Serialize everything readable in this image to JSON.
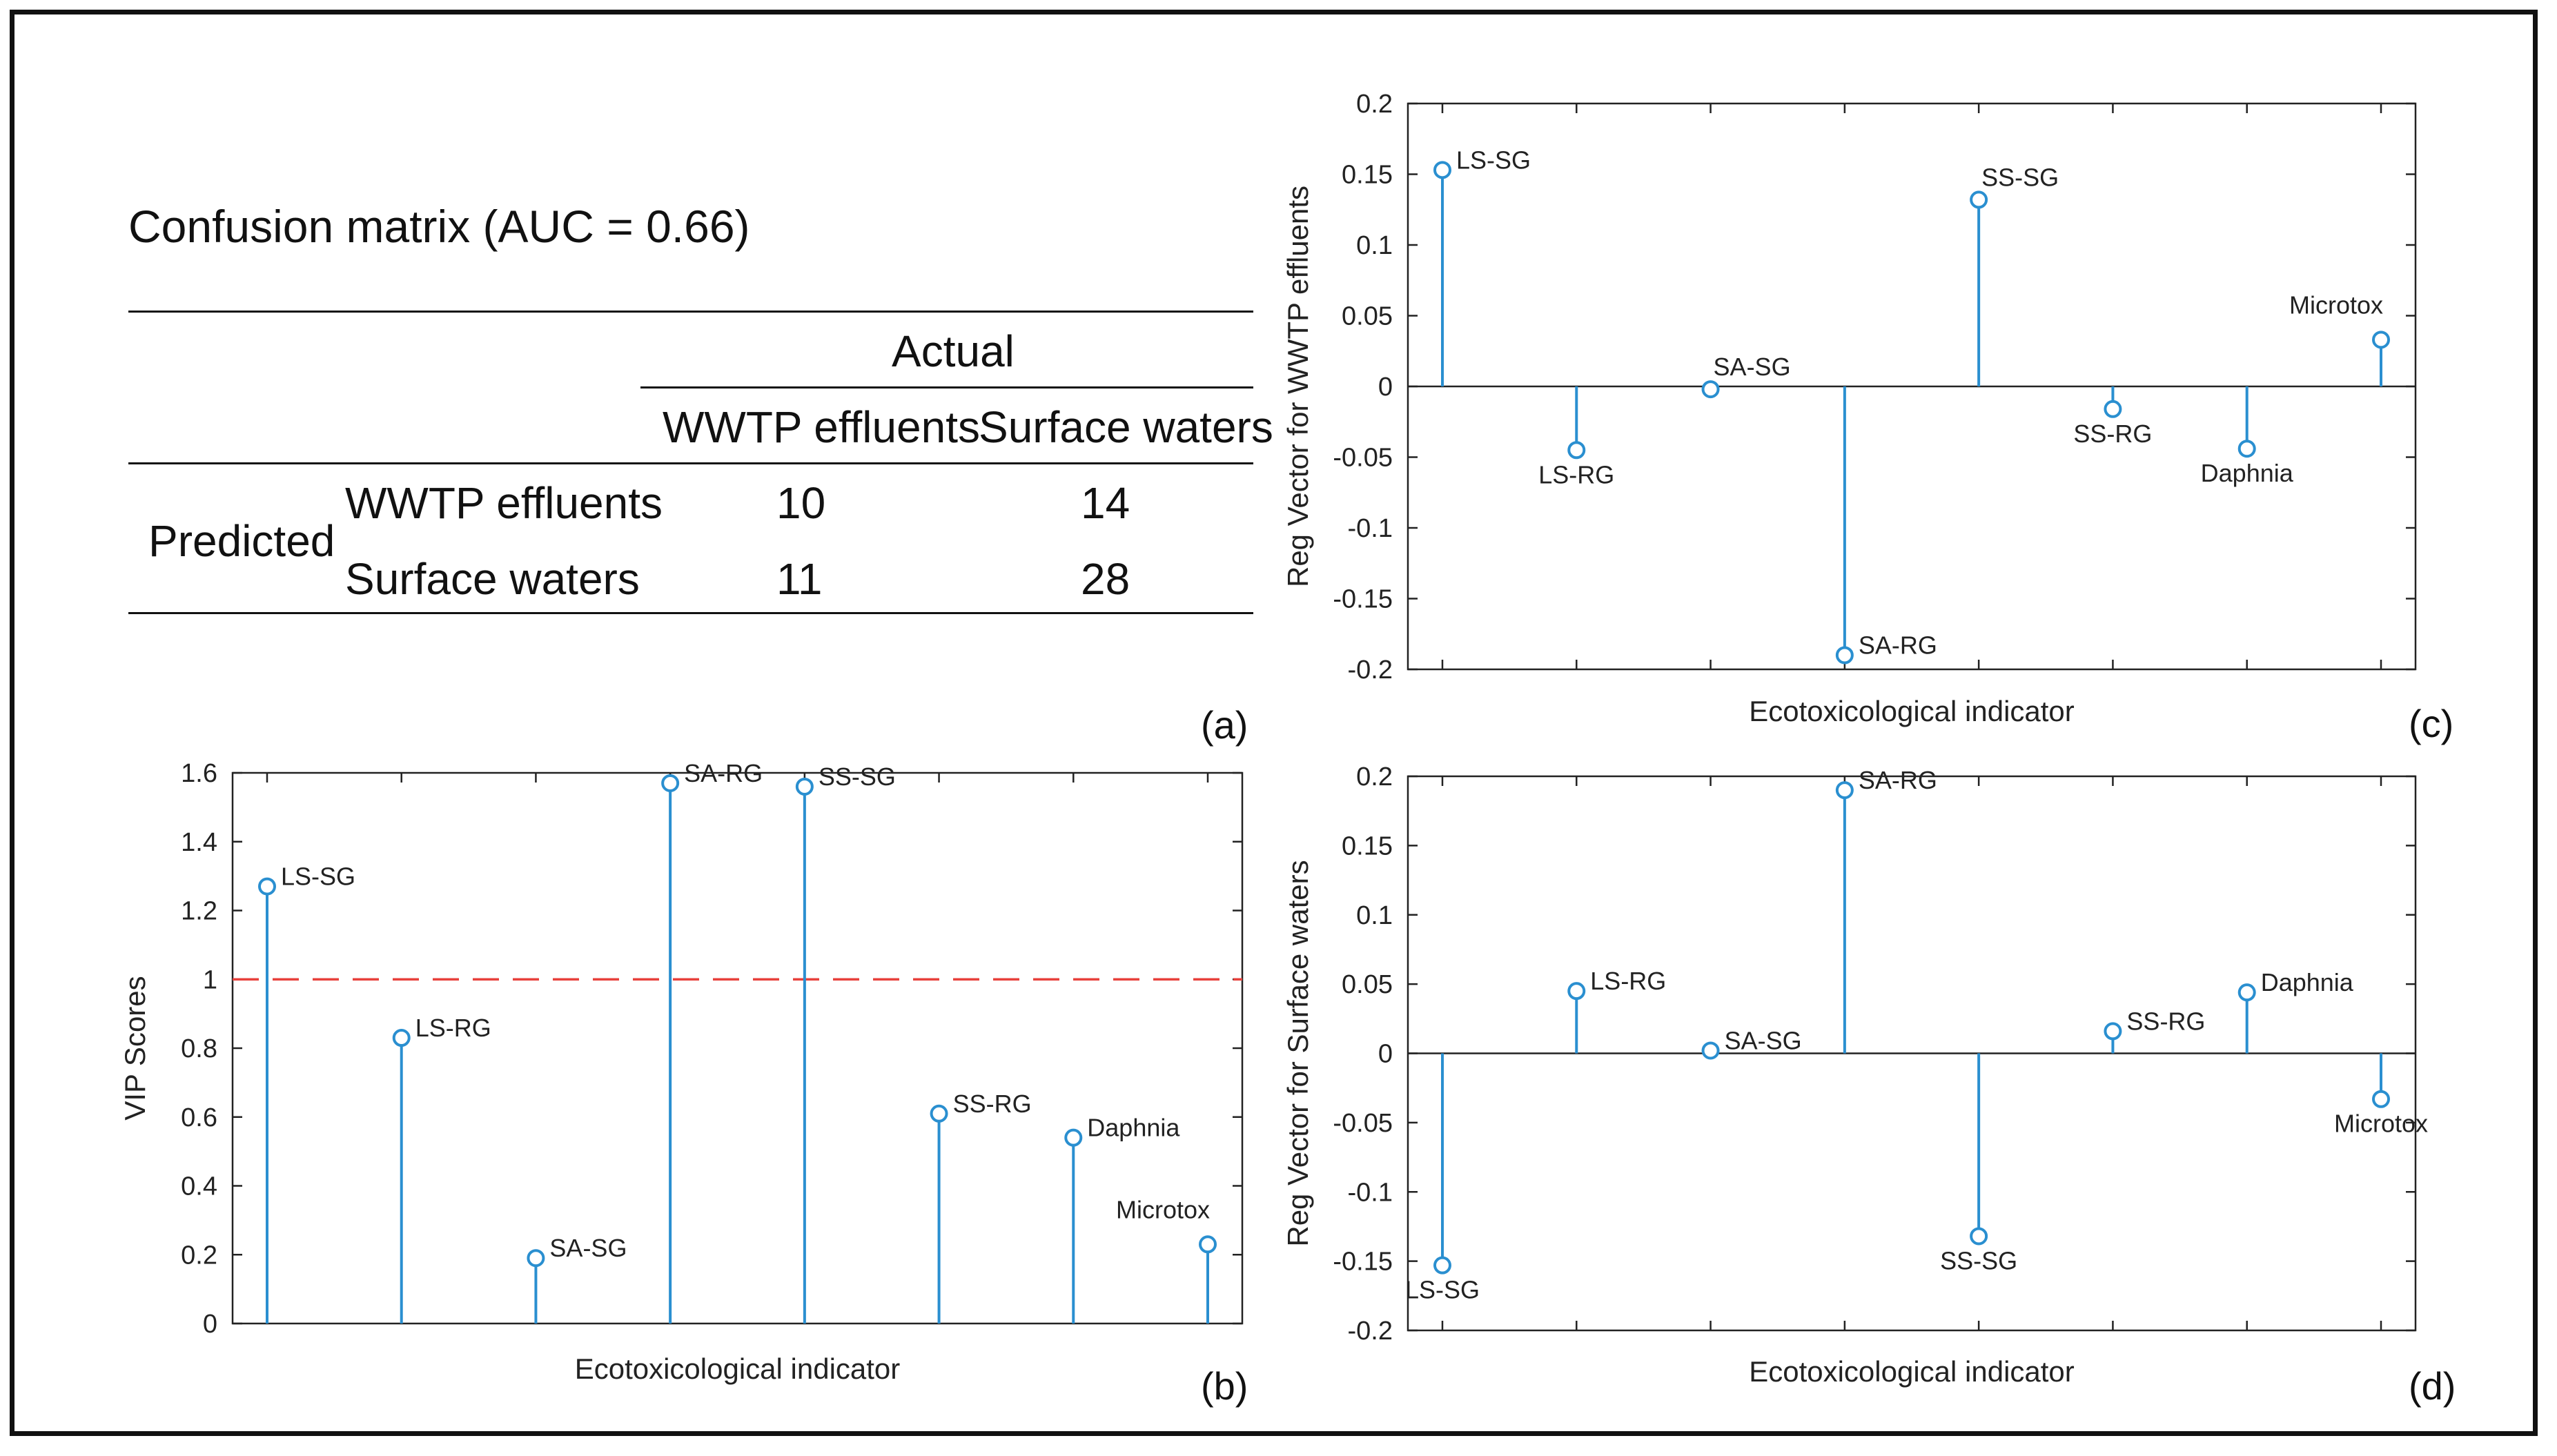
{
  "confusion_matrix": {
    "title": "Confusion matrix (AUC = 0.66)",
    "actual_label": "Actual",
    "predicted_label": "Predicted",
    "columns": [
      "WWTP effluents",
      "Surface waters"
    ],
    "rows": [
      {
        "label": "WWTP effluents",
        "values": [
          "10",
          "14"
        ]
      },
      {
        "label": "Surface waters",
        "values": [
          "11",
          "28"
        ]
      }
    ],
    "panel_label": "(a)"
  },
  "chart_data": [
    {
      "id": "b",
      "type": "stem",
      "categories": [
        "LS-SG",
        "LS-RG",
        "SA-SG",
        "SA-RG",
        "SS-SG",
        "SS-RG",
        "Daphnia",
        "Microtox"
      ],
      "values": [
        1.27,
        0.83,
        0.19,
        1.57,
        1.56,
        0.61,
        0.54,
        0.23
      ],
      "xlabel": "Ecotoxicological indicator",
      "ylabel": "VIP Scores",
      "ylim": [
        0,
        1.6
      ],
      "yticks": [
        "0",
        "0.2",
        "0.4",
        "0.6",
        "0.8",
        "1",
        "1.2",
        "1.4",
        "1.6"
      ],
      "threshold": 1,
      "threshold_color": "#e8413c",
      "series_color": "#2a8fd0",
      "label_positions": [
        "right",
        "right",
        "right",
        "right",
        "right",
        "right",
        "right",
        "top"
      ],
      "panel_label": "(b)"
    },
    {
      "id": "c",
      "type": "stem",
      "categories": [
        "LS-SG",
        "LS-RG",
        "SA-SG",
        "SA-RG",
        "SS-SG",
        "SS-RG",
        "Daphnia",
        "Microtox"
      ],
      "values": [
        0.153,
        -0.045,
        -0.002,
        -0.19,
        0.132,
        -0.016,
        -0.044,
        0.033
      ],
      "xlabel": "Ecotoxicological indicator",
      "ylabel": "Reg Vector for WWTP effluents",
      "ylim": [
        -0.2,
        0.2
      ],
      "yticks": [
        "-0.2",
        "-0.15",
        "-0.1",
        "-0.05",
        "0",
        "0.05",
        "0.1",
        "0.15",
        "0.2"
      ],
      "series_color": "#2a8fd0",
      "label_positions": [
        "right",
        "below",
        "above",
        "right",
        "above",
        "below",
        "below",
        "top"
      ],
      "panel_label": "(c)"
    },
    {
      "id": "d",
      "type": "stem",
      "categories": [
        "LS-SG",
        "LS-RG",
        "SA-SG",
        "SA-RG",
        "SS-SG",
        "SS-RG",
        "Daphnia",
        "Microtox"
      ],
      "values": [
        -0.153,
        0.045,
        0.002,
        0.19,
        -0.132,
        0.016,
        0.044,
        -0.033
      ],
      "xlabel": "Ecotoxicological indicator",
      "ylabel": "Reg Vector for Surface waters",
      "ylim": [
        -0.2,
        0.2
      ],
      "yticks": [
        "-0.2",
        "-0.15",
        "-0.1",
        "-0.05",
        "0",
        "0.05",
        "0.1",
        "0.15",
        "0.2"
      ],
      "series_color": "#2a8fd0",
      "label_positions": [
        "below",
        "right",
        "right",
        "right",
        "below",
        "right",
        "right",
        "below"
      ],
      "panel_label": "(d)"
    }
  ]
}
